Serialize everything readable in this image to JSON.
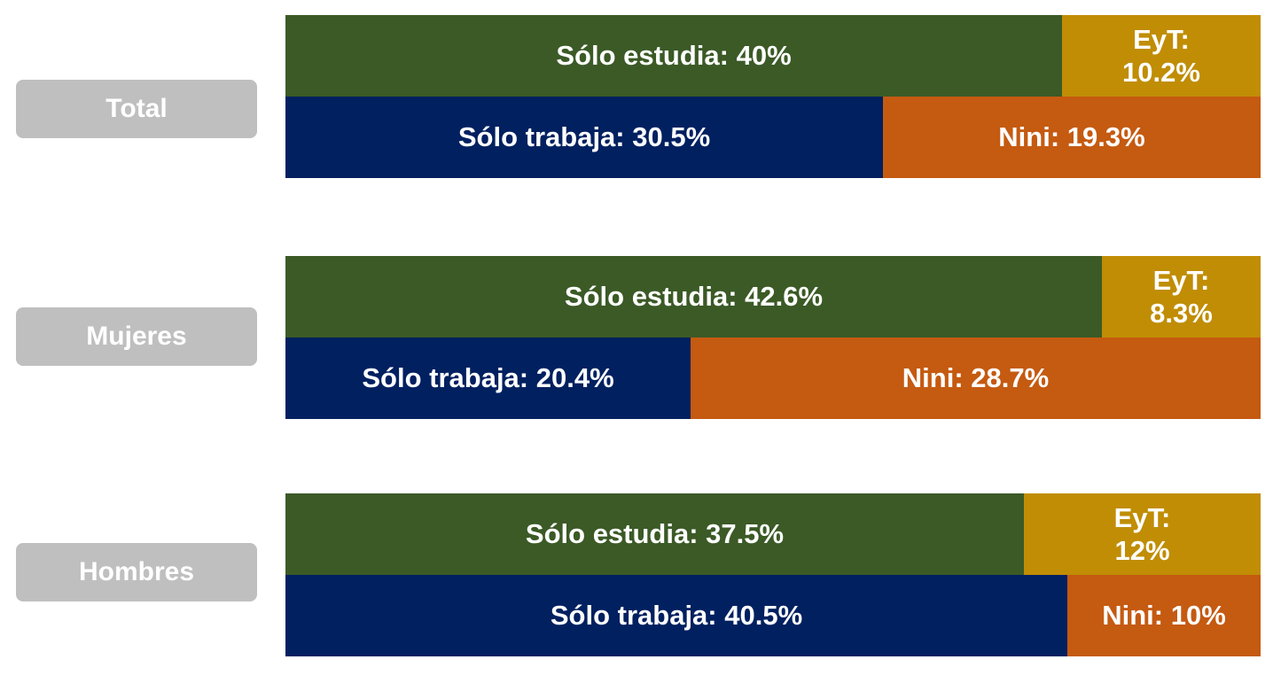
{
  "chart_data": {
    "type": "bar",
    "orientation": "horizontal",
    "stacking": "two-row stacked, each row shares one 100% width",
    "groups": [
      {
        "name": "Total",
        "rows": [
          [
            {
              "category": "Sólo estudia",
              "value": 40,
              "label": "Sólo estudia: 40%",
              "color": "#3b5a26"
            },
            {
              "category": "EyT",
              "value": 10.2,
              "label": "EyT:\n10.2%",
              "color": "#c08d05"
            }
          ],
          [
            {
              "category": "Sólo trabaja",
              "value": 30.5,
              "label": "Sólo trabaja: 30.5%",
              "color": "#002060"
            },
            {
              "category": "Nini",
              "value": 19.3,
              "label": "Nini: 19.3%",
              "color": "#c55a11"
            }
          ]
        ]
      },
      {
        "name": "Mujeres",
        "rows": [
          [
            {
              "category": "Sólo estudia",
              "value": 42.6,
              "label": "Sólo estudia: 42.6%",
              "color": "#3b5a26"
            },
            {
              "category": "EyT",
              "value": 8.3,
              "label": "EyT:\n8.3%",
              "color": "#c08d05"
            }
          ],
          [
            {
              "category": "Sólo trabaja",
              "value": 20.4,
              "label": "Sólo trabaja: 20.4%",
              "color": "#002060"
            },
            {
              "category": "Nini",
              "value": 28.7,
              "label": "Nini: 28.7%",
              "color": "#c55a11"
            }
          ]
        ]
      },
      {
        "name": "Hombres",
        "rows": [
          [
            {
              "category": "Sólo estudia",
              "value": 37.5,
              "label": "Sólo estudia: 37.5%",
              "color": "#3b5a26"
            },
            {
              "category": "EyT",
              "value": 12,
              "label": "EyT:\n12%",
              "color": "#c08d05"
            }
          ],
          [
            {
              "category": "Sólo trabaja",
              "value": 40.5,
              "label": "Sólo trabaja: 40.5%",
              "color": "#002060"
            },
            {
              "category": "Nini",
              "value": 10,
              "label": "Nini: 10%",
              "color": "#c55a11"
            }
          ]
        ]
      }
    ],
    "colors": {
      "solo_estudia": "#3b5a26",
      "eyt": "#c08d05",
      "solo_trabaja": "#002060",
      "nini": "#c55a11",
      "group_label_bg": "#bfbfbf"
    }
  }
}
